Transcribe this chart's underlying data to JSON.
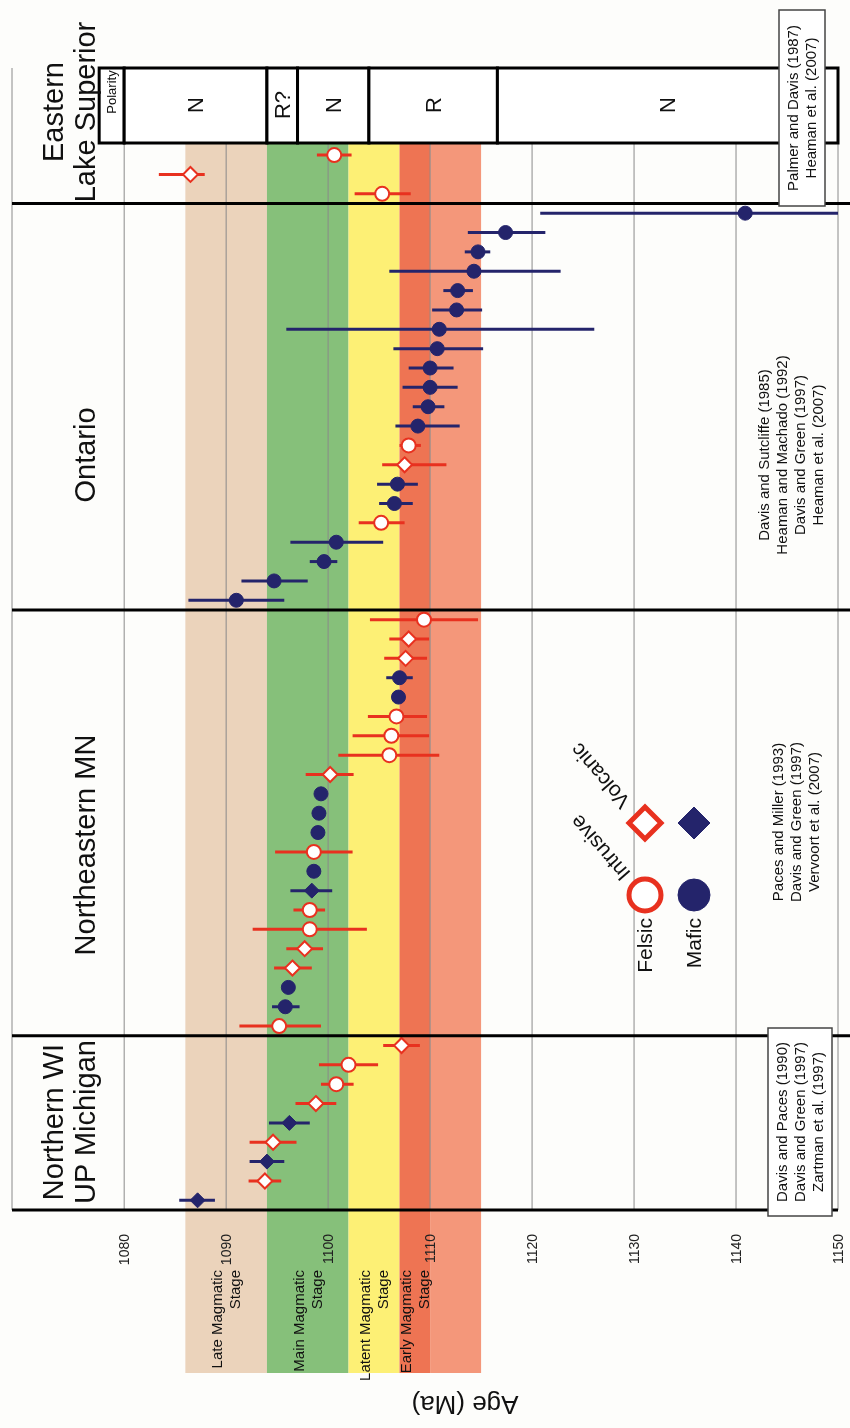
{
  "chart_data": {
    "type": "scatter",
    "orientation": "horizontal",
    "xlabel": "Age (Ma)",
    "categories": [
      null,
      null,
      null,
      null,
      null,
      null,
      null,
      null,
      null,
      null,
      null,
      null,
      null,
      null,
      null,
      null,
      null,
      null,
      null,
      null,
      null,
      null,
      null,
      null,
      null,
      null,
      null,
      null,
      null,
      null,
      null,
      null,
      null,
      null,
      null,
      null,
      null,
      null,
      null,
      null,
      null,
      null,
      null,
      null,
      null,
      null,
      null,
      null,
      null,
      null,
      null,
      null,
      null,
      null,
      null,
      null,
      null,
      null,
      null
    ],
    "xlim": [
      1069,
      1150
    ],
    "xticks": [
      1080,
      1090,
      1100,
      1110,
      1120,
      1130,
      1140,
      1150
    ],
    "grid": "x",
    "series": [
      {
        "color": "#e8311f",
        "marker": "circle",
        "values": [
          null,
          null,
          null,
          null,
          1100.6,
          null,
          1105.3,
          null,
          null,
          null,
          null,
          null,
          null,
          null,
          null,
          null,
          null,
          null,
          null,
          1107.9,
          null,
          null,
          null,
          1105.2,
          null,
          null,
          null,
          null,
          1109.4,
          null,
          null,
          null,
          null,
          1106.7,
          1106.2,
          1106.0,
          null,
          null,
          null,
          null,
          1098.6,
          null,
          null,
          1098.2,
          1098.2,
          null,
          null,
          null,
          null,
          1095.2,
          null,
          1102.0,
          1100.8,
          null,
          null,
          null,
          null,
          null,
          null
        ],
        "errors": [
          null,
          null,
          null,
          null,
          [
            1098.9,
            1102.3
          ],
          null,
          [
            1102.6,
            1108.1
          ],
          null,
          null,
          null,
          null,
          null,
          null,
          null,
          null,
          null,
          null,
          null,
          null,
          [
            1107.0,
            1109.1
          ],
          null,
          null,
          null,
          [
            1103.0,
            1107.5
          ],
          null,
          null,
          null,
          null,
          [
            1104.1,
            1114.7
          ],
          null,
          null,
          null,
          null,
          [
            1103.9,
            1109.7
          ],
          [
            1102.4,
            1109.9
          ],
          [
            1101.0,
            1110.9
          ],
          null,
          null,
          null,
          null,
          [
            1094.8,
            1102.4
          ],
          null,
          null,
          [
            1096.6,
            1099.7
          ],
          [
            1092.6,
            1103.8
          ],
          null,
          null,
          null,
          null,
          [
            1091.3,
            1099.3
          ],
          null,
          [
            1099.1,
            1104.9
          ],
          [
            1099.3,
            1102.5
          ],
          null,
          null,
          null,
          null,
          null,
          null
        ]
      },
      {
        "color": "#e8311f",
        "marker": "diamond",
        "values": [
          null,
          null,
          null,
          null,
          null,
          1086.5,
          null,
          null,
          null,
          null,
          null,
          null,
          null,
          null,
          null,
          null,
          null,
          null,
          null,
          null,
          1107.5,
          null,
          null,
          null,
          null,
          null,
          null,
          null,
          null,
          1107.9,
          1107.6,
          null,
          null,
          null,
          null,
          null,
          1100.2,
          null,
          null,
          null,
          null,
          null,
          null,
          null,
          null,
          1097.7,
          1096.5,
          null,
          null,
          null,
          1107.2,
          null,
          null,
          1098.8,
          null,
          1094.6,
          null,
          1093.8,
          null
        ],
        "errors": [
          null,
          null,
          null,
          null,
          null,
          [
            1083.4,
            1087.9
          ],
          null,
          null,
          null,
          null,
          null,
          null,
          null,
          null,
          null,
          null,
          null,
          null,
          null,
          null,
          [
            1105.3,
            1111.6
          ],
          null,
          null,
          null,
          null,
          null,
          null,
          null,
          null,
          [
            1106.0,
            1109.9
          ],
          [
            1105.5,
            1109.7
          ],
          null,
          null,
          null,
          null,
          null,
          [
            1097.8,
            1102.5
          ],
          null,
          null,
          null,
          null,
          null,
          null,
          null,
          null,
          [
            1095.9,
            1099.5
          ],
          [
            1094.7,
            1098.4
          ],
          null,
          null,
          null,
          [
            1105.4,
            1109.0
          ],
          null,
          null,
          [
            1096.8,
            1100.8
          ],
          null,
          [
            1092.3,
            1096.9
          ],
          null,
          [
            1092.2,
            1095.4
          ],
          null
        ]
      },
      {
        "color": "#24246b",
        "marker": "circle",
        "values": [
          null,
          null,
          null,
          null,
          null,
          null,
          null,
          1140.9,
          1117.4,
          1114.7,
          1114.3,
          1112.7,
          1112.6,
          1110.9,
          1110.7,
          1110.0,
          1110.0,
          1109.8,
          1108.8,
          null,
          null,
          1106.8,
          1106.5,
          null,
          1100.8,
          1099.6,
          1094.7,
          1091.0,
          null,
          null,
          null,
          1107.0,
          1106.9,
          null,
          null,
          null,
          null,
          1099.3,
          1099.1,
          1099.0,
          null,
          1098.6,
          null,
          null,
          null,
          null,
          null,
          1096.1,
          1095.8,
          null,
          null,
          null,
          null,
          null,
          null,
          null,
          null,
          null,
          null
        ],
        "errors": [
          null,
          null,
          null,
          null,
          null,
          null,
          null,
          [
            1120.8,
            1150
          ],
          [
            1113.7,
            1121.3
          ],
          [
            1113.4,
            1115.9
          ],
          [
            1106.0,
            1122.8
          ],
          [
            1111.3,
            1114.2
          ],
          [
            1110.2,
            1115.1
          ],
          [
            1095.9,
            1126.1
          ],
          [
            1106.4,
            1115.2
          ],
          [
            1107.9,
            1112.3
          ],
          [
            1107.3,
            1112.7
          ],
          [
            1108.3,
            1111.4
          ],
          [
            1106.6,
            1112.9
          ],
          null,
          null,
          [
            1104.8,
            1108.8
          ],
          [
            1105.0,
            1108.3
          ],
          null,
          [
            1096.3,
            1105.4
          ],
          [
            1098.2,
            1100.9
          ],
          [
            1091.5,
            1098.0
          ],
          [
            1086.3,
            1095.7
          ],
          null,
          null,
          null,
          [
            1105.7,
            1108.3
          ],
          null,
          null,
          null,
          null,
          null,
          null,
          null,
          null,
          null,
          null,
          null,
          null,
          null,
          null,
          null,
          null,
          [
            1094.5,
            1097.2
          ],
          null,
          null,
          null,
          null,
          null,
          null,
          null,
          null,
          null,
          null
        ]
      },
      {
        "color": "#24246b",
        "marker": "diamond",
        "values": [
          null,
          null,
          null,
          null,
          null,
          null,
          null,
          null,
          null,
          null,
          null,
          null,
          null,
          null,
          null,
          null,
          null,
          null,
          null,
          null,
          null,
          null,
          null,
          null,
          null,
          null,
          null,
          null,
          null,
          null,
          null,
          null,
          null,
          null,
          null,
          null,
          null,
          null,
          null,
          null,
          null,
          null,
          1098.4,
          null,
          null,
          null,
          null,
          null,
          null,
          null,
          null,
          null,
          null,
          null,
          1096.2,
          null,
          1094.0,
          null,
          1087.2
        ],
        "errors": [
          null,
          null,
          null,
          null,
          null,
          null,
          null,
          null,
          null,
          null,
          null,
          null,
          null,
          null,
          null,
          null,
          null,
          null,
          null,
          null,
          null,
          null,
          null,
          null,
          null,
          null,
          null,
          null,
          null,
          null,
          null,
          null,
          null,
          null,
          null,
          null,
          null,
          null,
          null,
          null,
          null,
          null,
          [
            1096.3,
            1100.4
          ],
          null,
          null,
          null,
          null,
          null,
          null,
          null,
          null,
          null,
          null,
          null,
          [
            1094.2,
            1098.2
          ],
          null,
          [
            1092.3,
            1095.7
          ],
          null,
          [
            1085.4,
            1088.9
          ]
        ]
      }
    ],
    "bands": [
      {
        "axis": "x",
        "from": 1086,
        "to": 1094,
        "label": "Late Magmatic\nStage",
        "color": "#ebd3bb"
      },
      {
        "axis": "x",
        "from": 1094,
        "to": 1102,
        "label": "Main Magmatic\nStage",
        "color": "#86c07a"
      },
      {
        "axis": "x",
        "from": 1102,
        "to": 1107,
        "label": "Latent Magmatic\nStage",
        "color": "#fdf075"
      },
      {
        "axis": "x",
        "from": 1107,
        "to": 1110,
        "label": "Early Magmatic\nStage",
        "color": "#ee7453"
      },
      {
        "axis": "x",
        "from": 1110,
        "to": 1115,
        "label": null,
        "color": "#f4977a"
      },
      {
        "axis": "x",
        "from": 1080,
        "to": 1094,
        "label": "N",
        "color": "#ffffff"
      },
      {
        "axis": "x",
        "from": 1094,
        "to": 1097,
        "label": "R?",
        "color": "#ffffff"
      },
      {
        "axis": "x",
        "from": 1097,
        "to": 1104,
        "label": "N",
        "color": "#ffffff"
      },
      {
        "axis": "x",
        "from": 1104,
        "to": 1116.6,
        "label": "R",
        "color": "#ffffff"
      },
      {
        "axis": "x",
        "from": 1116.6,
        "to": 1150,
        "label": "N",
        "color": "#ffffff"
      }
    ],
    "annotations": [
      "Eastern\nLake Superior",
      "Ontario",
      "Northeastern MN",
      "Northern WI\nUP Michigan",
      "Palmer and Davis (1987)\nHeaman et al. (2007)",
      "Davis and Sutcliffe (1985)\nHeaman and Machado (1992)\nDavis and Green (1997)\nHeaman et al. (2007)",
      "Paces and Miller (1993)\nDavis and Green (1997)\nVervoort et al. (2007)",
      "Davis and Paces (1990)\nDavis and Green (1997)\nZartman et al. (1997)",
      "Polarity",
      "Felsic",
      "Mafic",
      "Intrusive",
      "Volcanic"
    ]
  }
}
